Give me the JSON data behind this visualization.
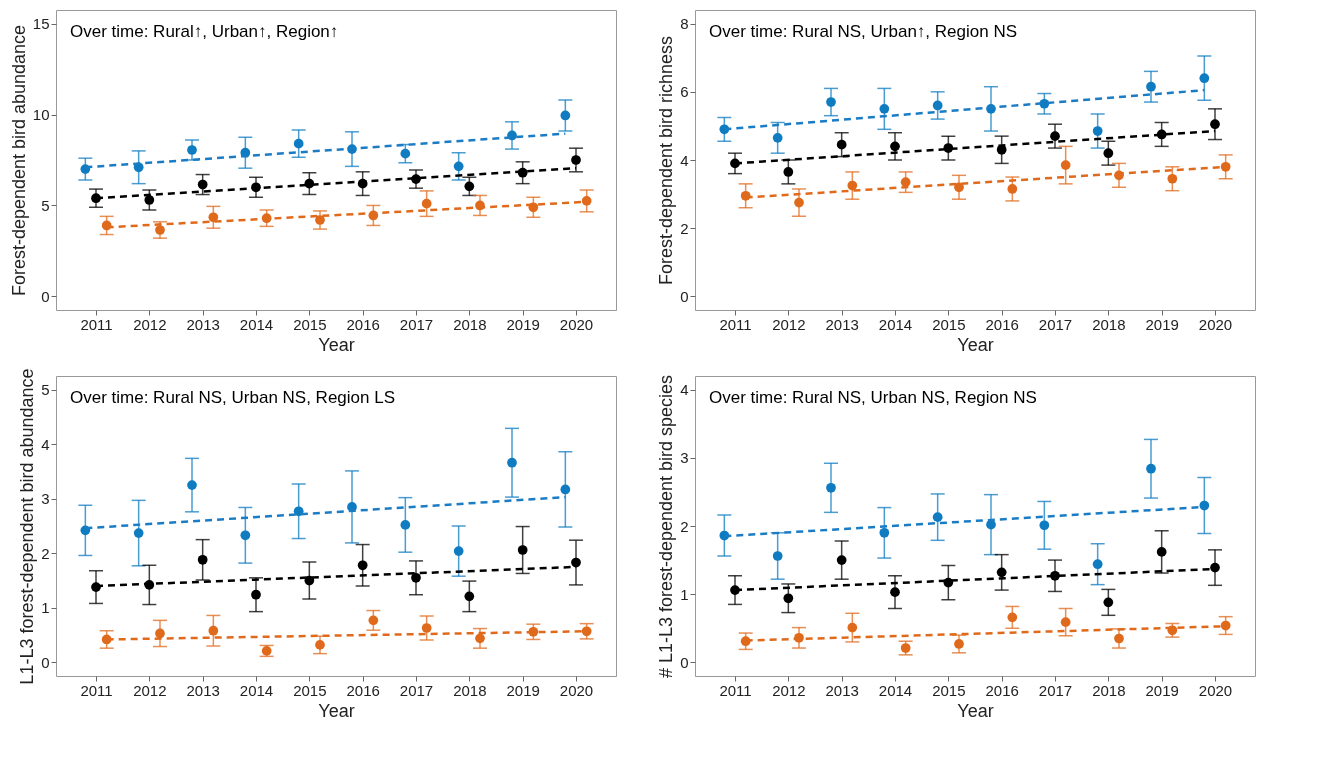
{
  "chart_data": [
    {
      "type": "scatter",
      "xlabel": "Year",
      "ylabel": "Forest-dependent bird abundance",
      "annotations": [
        "Over time: Rural↑, Urban↑, Region↑"
      ],
      "xlim": [
        2010.25,
        2020.75
      ],
      "xticks": [
        2011,
        2012,
        2013,
        2014,
        2015,
        2016,
        2017,
        2018,
        2019,
        2020
      ],
      "ylim": [
        -0.75,
        15.75
      ],
      "yticks": [
        0,
        5,
        10,
        15
      ],
      "grid": false,
      "series": [
        {
          "type": "scatter",
          "marker": "circle",
          "color": "#0f7cc2",
          "x": [
            2010.8,
            2011.8,
            2012.8,
            2013.8,
            2014.8,
            2015.8,
            2016.8,
            2017.8,
            2018.8,
            2019.8
          ],
          "values": [
            7.0,
            7.1,
            8.05,
            7.9,
            8.4,
            8.1,
            7.85,
            7.15,
            8.85,
            9.95
          ],
          "errors": [
            0.6,
            0.9,
            0.55,
            0.85,
            0.75,
            0.95,
            0.5,
            0.75,
            0.75,
            0.85
          ]
        },
        {
          "marker": "circle",
          "color": "#000000",
          "x": [
            2011,
            2012,
            2013,
            2014,
            2015,
            2016,
            2017,
            2018,
            2019,
            2020
          ],
          "values": [
            5.4,
            5.3,
            6.15,
            6.0,
            6.2,
            6.2,
            6.45,
            6.05,
            6.8,
            7.5
          ],
          "errors": [
            0.5,
            0.55,
            0.55,
            0.55,
            0.6,
            0.65,
            0.5,
            0.5,
            0.6,
            0.65
          ]
        },
        {
          "type": "scatter",
          "marker": "circle",
          "color": "#e06a1c",
          "x": [
            2011.2,
            2012.2,
            2013.2,
            2014.2,
            2015.2,
            2016.2,
            2017.2,
            2018.2,
            2019.2,
            2020.2
          ],
          "values": [
            3.9,
            3.65,
            4.35,
            4.3,
            4.2,
            4.45,
            5.1,
            5.0,
            4.9,
            5.25
          ],
          "errors": [
            0.5,
            0.45,
            0.6,
            0.45,
            0.5,
            0.55,
            0.7,
            0.55,
            0.55,
            0.6
          ]
        },
        {
          "type": "line",
          "line_style": "dashed",
          "marker": "none",
          "color": "#1a7cc4",
          "x": [
            2010.8,
            2019.8
          ],
          "values": [
            7.1,
            8.95
          ]
        },
        {
          "type": "line",
          "line_style": "dashed",
          "marker": "none",
          "color": "#000000",
          "x": [
            2011,
            2020
          ],
          "values": [
            5.4,
            7.05
          ]
        },
        {
          "type": "line",
          "line_style": "dashed",
          "marker": "none",
          "color": "#e06a1c",
          "x": [
            2011.2,
            2020.2
          ],
          "values": [
            3.8,
            5.2
          ]
        }
      ]
    },
    {
      "type": "scatter",
      "xlabel": "Year",
      "ylabel": "Forest-dependent bird richness",
      "annotations": [
        "Over time: Rural NS, Urban↑, Region NS"
      ],
      "xlim": [
        2010.25,
        2020.75
      ],
      "xticks": [
        2011,
        2012,
        2013,
        2014,
        2015,
        2016,
        2017,
        2018,
        2019,
        2020
      ],
      "ylim": [
        -0.4,
        8.4
      ],
      "yticks": [
        0,
        2,
        4,
        6,
        8
      ],
      "grid": false,
      "series": [
        {
          "type": "scatter",
          "marker": "circle",
          "color": "#0f7cc2",
          "x": [
            2010.8,
            2011.8,
            2012.8,
            2013.8,
            2014.8,
            2015.8,
            2016.8,
            2017.8,
            2018.8,
            2019.8
          ],
          "values": [
            4.9,
            4.65,
            5.7,
            5.5,
            5.6,
            5.5,
            5.65,
            4.85,
            6.15,
            6.4
          ],
          "errors": [
            0.35,
            0.45,
            0.4,
            0.6,
            0.4,
            0.65,
            0.3,
            0.5,
            0.45,
            0.65
          ]
        },
        {
          "marker": "circle",
          "color": "#000000",
          "x": [
            2011,
            2012,
            2013,
            2014,
            2015,
            2016,
            2017,
            2018,
            2019,
            2020
          ],
          "values": [
            3.9,
            3.65,
            4.45,
            4.4,
            4.35,
            4.3,
            4.7,
            4.2,
            4.75,
            5.05
          ],
          "errors": [
            0.3,
            0.35,
            0.35,
            0.4,
            0.35,
            0.4,
            0.35,
            0.35,
            0.35,
            0.45
          ]
        },
        {
          "type": "scatter",
          "marker": "circle",
          "color": "#e06a1c",
          "x": [
            2011.2,
            2012.2,
            2013.2,
            2014.2,
            2015.2,
            2016.2,
            2017.2,
            2018.2,
            2019.2,
            2020.2
          ],
          "values": [
            2.95,
            2.75,
            3.25,
            3.35,
            3.2,
            3.15,
            3.85,
            3.55,
            3.45,
            3.8
          ],
          "errors": [
            0.35,
            0.4,
            0.4,
            0.3,
            0.35,
            0.35,
            0.55,
            0.35,
            0.35,
            0.35
          ]
        },
        {
          "type": "line",
          "line_style": "dashed",
          "marker": "none",
          "color": "#1a7cc4",
          "x": [
            2010.8,
            2019.8
          ],
          "values": [
            4.9,
            6.05
          ]
        },
        {
          "type": "line",
          "line_style": "dashed",
          "marker": "none",
          "color": "#000000",
          "x": [
            2011,
            2020
          ],
          "values": [
            3.9,
            4.85
          ]
        },
        {
          "type": "line",
          "line_style": "dashed",
          "marker": "none",
          "color": "#e06a1c",
          "x": [
            2011.2,
            2020.2
          ],
          "values": [
            2.9,
            3.8
          ]
        }
      ]
    },
    {
      "type": "scatter",
      "xlabel": "Year",
      "ylabel": "L1-L3 forest-dependent bird abundance",
      "annotations": [
        "Over time: Rural NS, Urban NS, Region LS"
      ],
      "xlim": [
        2010.25,
        2020.75
      ],
      "xticks": [
        2011,
        2012,
        2013,
        2014,
        2015,
        2016,
        2017,
        2018,
        2019,
        2020
      ],
      "ylim": [
        -0.25,
        5.25
      ],
      "yticks": [
        0,
        1,
        2,
        3,
        4,
        5
      ],
      "grid": false,
      "series": [
        {
          "type": "scatter",
          "marker": "circle",
          "color": "#0f7cc2",
          "x": [
            2010.8,
            2011.8,
            2012.8,
            2013.8,
            2014.8,
            2015.8,
            2016.8,
            2017.8,
            2018.8,
            2019.8
          ],
          "values": [
            2.42,
            2.37,
            3.25,
            2.33,
            2.77,
            2.85,
            2.52,
            2.04,
            3.66,
            3.17
          ],
          "errors": [
            0.46,
            0.6,
            0.49,
            0.51,
            0.5,
            0.66,
            0.5,
            0.46,
            0.63,
            0.69
          ]
        },
        {
          "marker": "circle",
          "color": "#000000",
          "x": [
            2011,
            2012,
            2013,
            2014,
            2015,
            2016,
            2017,
            2018,
            2019,
            2020
          ],
          "values": [
            1.38,
            1.42,
            1.88,
            1.24,
            1.5,
            1.78,
            1.55,
            1.21,
            2.06,
            1.83
          ],
          "errors": [
            0.3,
            0.36,
            0.37,
            0.31,
            0.34,
            0.38,
            0.31,
            0.28,
            0.43,
            0.41
          ]
        },
        {
          "type": "scatter",
          "marker": "circle",
          "color": "#e06a1c",
          "x": [
            2011.2,
            2012.2,
            2013.2,
            2014.2,
            2015.2,
            2016.2,
            2017.2,
            2018.2,
            2019.2,
            2020.2
          ],
          "values": [
            0.42,
            0.53,
            0.58,
            0.21,
            0.32,
            0.77,
            0.63,
            0.44,
            0.56,
            0.57
          ],
          "errors": [
            0.16,
            0.24,
            0.28,
            0.1,
            0.16,
            0.18,
            0.22,
            0.18,
            0.14,
            0.14
          ]
        },
        {
          "type": "line",
          "line_style": "dashed",
          "marker": "none",
          "color": "#1a7cc4",
          "x": [
            2010.8,
            2019.8
          ],
          "values": [
            2.46,
            3.03
          ]
        },
        {
          "type": "line",
          "line_style": "dashed",
          "marker": "none",
          "color": "#000000",
          "x": [
            2011,
            2020
          ],
          "values": [
            1.4,
            1.75
          ]
        },
        {
          "type": "line",
          "line_style": "dashed",
          "marker": "none",
          "color": "#e06a1c",
          "x": [
            2011.2,
            2020.2
          ],
          "values": [
            0.42,
            0.57
          ]
        }
      ]
    },
    {
      "type": "scatter",
      "xlabel": "Year",
      "ylabel": "# L1-L3 forest-dependent bird species",
      "annotations": [
        "Over time: Rural NS, Urban NS, Region NS"
      ],
      "xlim": [
        2010.25,
        2020.75
      ],
      "xticks": [
        2011,
        2012,
        2013,
        2014,
        2015,
        2016,
        2017,
        2018,
        2019,
        2020
      ],
      "ylim": [
        -0.2,
        4.2
      ],
      "yticks": [
        0,
        1,
        2,
        3,
        4
      ],
      "grid": false,
      "series": [
        {
          "type": "scatter",
          "marker": "circle",
          "color": "#0f7cc2",
          "x": [
            2010.8,
            2011.8,
            2012.8,
            2013.8,
            2014.8,
            2015.8,
            2016.8,
            2017.8,
            2018.8,
            2019.8
          ],
          "values": [
            1.86,
            1.56,
            2.56,
            1.9,
            2.13,
            2.02,
            2.01,
            1.44,
            2.84,
            2.3
          ],
          "errors": [
            0.3,
            0.34,
            0.36,
            0.37,
            0.34,
            0.44,
            0.35,
            0.3,
            0.43,
            0.41
          ]
        },
        {
          "marker": "circle",
          "color": "#000000",
          "x": [
            2011,
            2012,
            2013,
            2014,
            2015,
            2016,
            2017,
            2018,
            2019,
            2020
          ],
          "values": [
            1.06,
            0.94,
            1.5,
            1.03,
            1.17,
            1.32,
            1.27,
            0.88,
            1.62,
            1.39
          ],
          "errors": [
            0.21,
            0.21,
            0.28,
            0.24,
            0.25,
            0.26,
            0.23,
            0.19,
            0.31,
            0.26
          ]
        },
        {
          "type": "scatter",
          "marker": "circle",
          "color": "#e06a1c",
          "x": [
            2011.2,
            2012.2,
            2013.2,
            2014.2,
            2015.2,
            2016.2,
            2017.2,
            2018.2,
            2019.2,
            2020.2
          ],
          "values": [
            0.31,
            0.36,
            0.51,
            0.21,
            0.27,
            0.66,
            0.59,
            0.35,
            0.47,
            0.54
          ],
          "errors": [
            0.12,
            0.15,
            0.21,
            0.1,
            0.13,
            0.16,
            0.2,
            0.14,
            0.1,
            0.13
          ]
        },
        {
          "type": "line",
          "line_style": "dashed",
          "marker": "none",
          "color": "#1a7cc4",
          "x": [
            2010.8,
            2019.8
          ],
          "values": [
            1.85,
            2.28
          ]
        },
        {
          "type": "line",
          "line_style": "dashed",
          "marker": "none",
          "color": "#000000",
          "x": [
            2011,
            2020
          ],
          "values": [
            1.06,
            1.37
          ]
        },
        {
          "type": "line",
          "line_style": "dashed",
          "marker": "none",
          "color": "#e06a1c",
          "x": [
            2011.2,
            2020.2
          ],
          "values": [
            0.32,
            0.53
          ]
        }
      ]
    }
  ]
}
